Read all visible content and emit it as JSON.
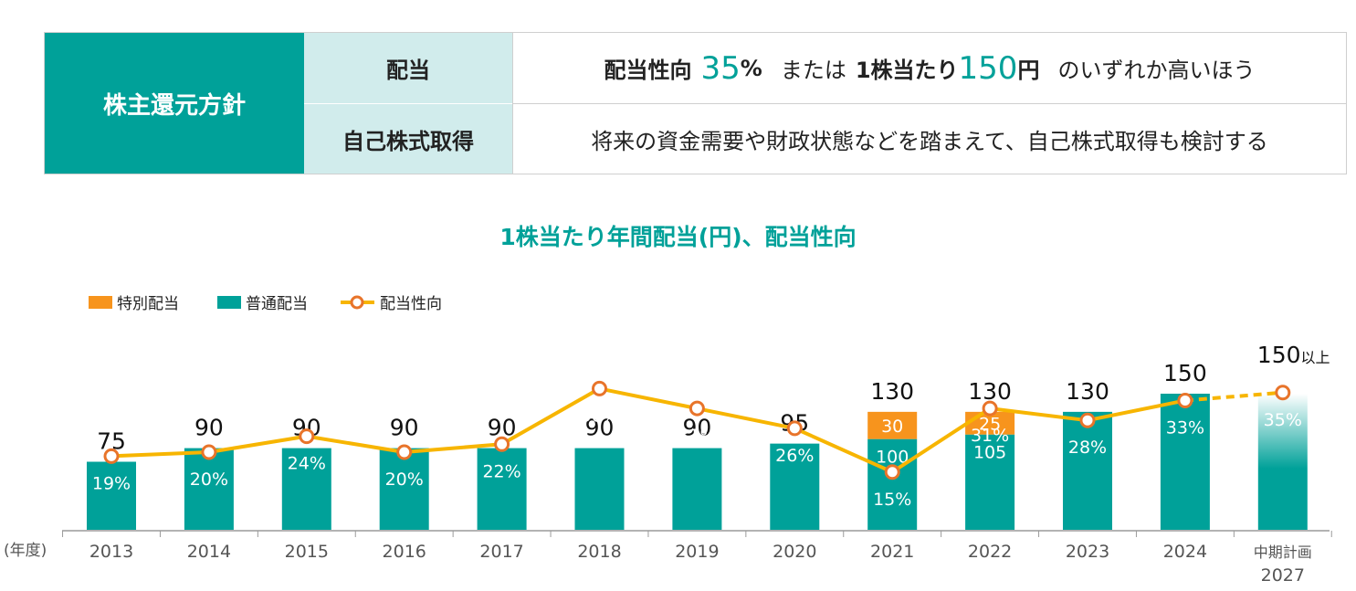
{
  "policy": {
    "heading": "株主還元方針",
    "rows": [
      {
        "label": "配当",
        "parts": [
          "配当性向",
          "35",
          "%",
          "または",
          "1株当たり",
          "150",
          "円",
          "のいずれか高いほう"
        ]
      },
      {
        "label": "自己株式取得",
        "text": "将来の資金需要や財政状態などを踏まえて、自己株式取得も検討する"
      }
    ]
  },
  "colors": {
    "teal": "#00a199",
    "orange": "#f7941d",
    "line": "#f7b500",
    "cell": "#d1ecec"
  },
  "chart_data": {
    "type": "bar",
    "title": "1株当たり年間配当(円)、配当性向",
    "axis_unit_label": "(年度)",
    "categories": [
      "2013",
      "2014",
      "2015",
      "2016",
      "2017",
      "2018",
      "2019",
      "2020",
      "2021",
      "2022",
      "2023",
      "2024",
      "中期計画 2027"
    ],
    "category_lines": [
      [
        "2013"
      ],
      [
        "2014"
      ],
      [
        "2015"
      ],
      [
        "2016"
      ],
      [
        "2017"
      ],
      [
        "2018"
      ],
      [
        "2019"
      ],
      [
        "2020"
      ],
      [
        "2021"
      ],
      [
        "2022"
      ],
      [
        "2023"
      ],
      [
        "2024"
      ],
      [
        "中期計画",
        "2027"
      ]
    ],
    "series": [
      {
        "name": "普通配当",
        "values": [
          75,
          90,
          90,
          90,
          90,
          90,
          90,
          95,
          100,
          105,
          130,
          150,
          150
        ]
      },
      {
        "name": "特別配当",
        "values": [
          0,
          0,
          0,
          0,
          0,
          0,
          0,
          0,
          30,
          25,
          0,
          0,
          0
        ]
      },
      {
        "name": "配当性向",
        "values": [
          19,
          20,
          24,
          20,
          22,
          36,
          31,
          26,
          15,
          31,
          28,
          33,
          35
        ],
        "unit": "%"
      }
    ],
    "totals": [
      "75",
      "90",
      "90",
      "90",
      "90",
      "90",
      "90",
      "95",
      "130",
      "130",
      "130",
      "150",
      "150"
    ],
    "total_suffix_last": "以上",
    "inner_labels": [
      "",
      "",
      "",
      "",
      "",
      "",
      "",
      "",
      "100",
      "105",
      "",
      "",
      ""
    ],
    "special_labels": [
      "",
      "",
      "",
      "",
      "",
      "",
      "",
      "",
      "30",
      "25",
      "",
      "",
      ""
    ],
    "legend": [
      "特別配当",
      "普通配当",
      "配当性向"
    ],
    "ylim": [
      0,
      160
    ],
    "y2lim": [
      0,
      100
    ]
  }
}
